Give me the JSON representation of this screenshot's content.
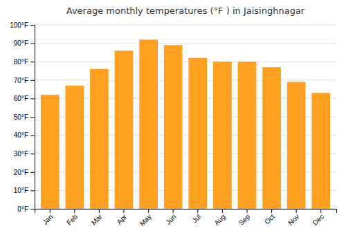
{
  "chart_data": {
    "type": "bar",
    "title": "Average monthly temperatures (°F ) in Jaisinghnagar",
    "categories": [
      "Jan",
      "Feb",
      "Mar",
      "Apr",
      "May",
      "Jun",
      "Jul",
      "Aug",
      "Sep",
      "Oct",
      "Nov",
      "Dec"
    ],
    "values": [
      62,
      67,
      76,
      86,
      92,
      89,
      82,
      80,
      80,
      77,
      69,
      63
    ],
    "color": "#FFA020",
    "ylim": [
      0,
      100
    ],
    "yticks": [
      {
        "value": 0,
        "label": "0°F"
      },
      {
        "value": 10,
        "label": "10°F"
      },
      {
        "value": 20,
        "label": "20°F"
      },
      {
        "value": 30,
        "label": "30°F"
      },
      {
        "value": 40,
        "label": "40°F"
      },
      {
        "value": 50,
        "label": "50°F"
      },
      {
        "value": 60,
        "label": "60°F"
      },
      {
        "value": 70,
        "label": "70°F"
      },
      {
        "value": 80,
        "label": "80°F"
      },
      {
        "value": 90,
        "label": "90°F"
      },
      {
        "value": 100,
        "label": "100°F"
      }
    ],
    "grid": true
  }
}
